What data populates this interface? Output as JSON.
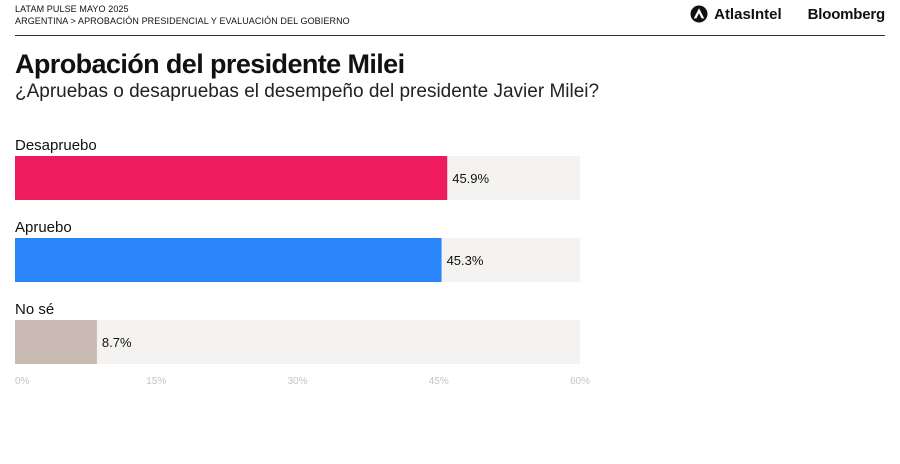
{
  "header": {
    "line1": "LATAM PULSE MAYO 2025",
    "line2": "ARGENTINA > APROBACIÓN PRESIDENCIAL Y EVALUACIÓN DEL GOBIERNO",
    "logo_atlas": "AtlasIntel",
    "logo_bloomberg": "Bloomberg"
  },
  "chart_data": {
    "type": "bar",
    "orientation": "horizontal",
    "title": "Aprobación del presidente Milei",
    "subtitle": "¿Apruebas o desapruebas el desempeño del presidente Javier Milei?",
    "categories": [
      "Desapruebo",
      "Apruebo",
      "No sé"
    ],
    "values": [
      45.9,
      45.3,
      8.7
    ],
    "value_labels": [
      "45.9%",
      "45.3%",
      "8.7%"
    ],
    "colors": [
      "#ee1c5e",
      "#2b86fb",
      "#c8bab3"
    ],
    "track_color": "#f4f3f1",
    "xlim": [
      0,
      60
    ],
    "xticks": [
      0,
      15,
      30,
      45,
      60
    ],
    "xtick_labels": [
      "0%",
      "15%",
      "30%",
      "45%",
      "60%"
    ],
    "grid": false
  }
}
